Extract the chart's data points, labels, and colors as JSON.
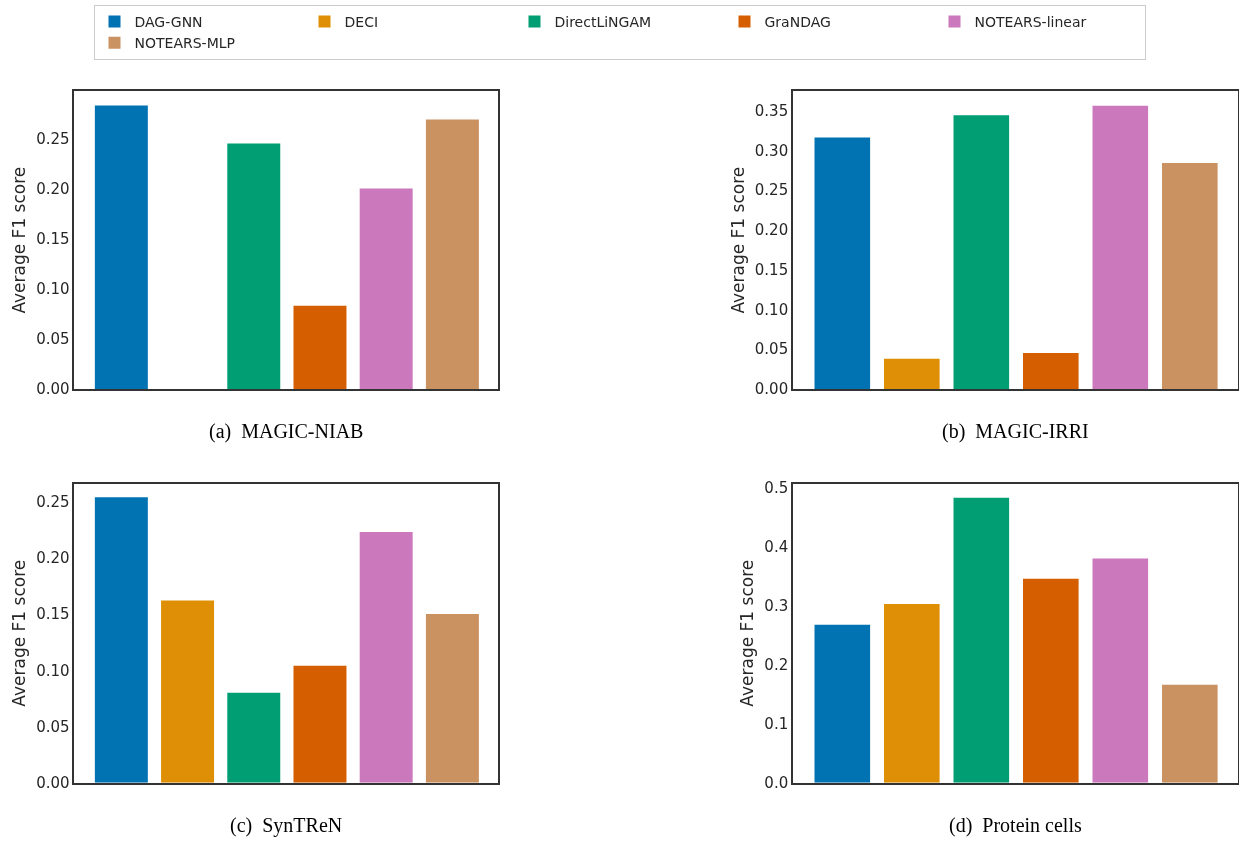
{
  "chart_data": [
    {
      "type": "bar",
      "title": "(a)  MAGIC-NIAB",
      "ylabel": "Average F1 score",
      "categories": [
        null,
        null,
        null,
        null,
        null,
        null
      ],
      "legend": "top",
      "ylim": [
        0,
        0.297
      ],
      "yticks": [
        {
          "value": 0,
          "label": "0.00"
        },
        0.05,
        {
          "value": 0.1,
          "label": "0.10"
        },
        0.15,
        {
          "value": 0.2,
          "label": "0.20"
        },
        0.25
      ],
      "series": [
        {
          "name": "DAG-GNN",
          "color": "#0173b2",
          "values": [
            0.283,
            null,
            null,
            null,
            null,
            null
          ]
        },
        {
          "name": "DECI",
          "color": "#de8f05",
          "values": [
            null,
            null,
            null,
            null,
            null,
            null
          ]
        },
        {
          "name": "DirectLiNGAM",
          "color": "#029e73",
          "values": [
            null,
            null,
            0.245,
            null,
            null,
            null
          ]
        },
        {
          "name": "GraNDAG",
          "color": "#d55e00",
          "values": [
            null,
            null,
            null,
            0.083,
            null,
            null
          ]
        },
        {
          "name": "NOTEARS-linear",
          "color": "#cc78bc",
          "values": [
            null,
            null,
            null,
            null,
            0.2,
            null
          ]
        },
        {
          "name": "NOTEARS-MLP",
          "color": "#ca9161",
          "values": [
            null,
            null,
            null,
            null,
            null,
            0.269
          ]
        }
      ]
    },
    {
      "type": "bar",
      "title": "(b)  MAGIC-IRRI",
      "ylabel": "Average F1 score",
      "categories": [
        null,
        null,
        null,
        null,
        null,
        null
      ],
      "ylim": [
        0,
        0.374
      ],
      "yticks": [
        {
          "value": 0,
          "label": "0.00"
        },
        0.05,
        {
          "value": 0.1,
          "label": "0.10"
        },
        0.15,
        {
          "value": 0.2,
          "label": "0.20"
        },
        0.25,
        {
          "value": 0.3,
          "label": "0.30"
        },
        0.35
      ],
      "series": [
        {
          "color": "#0173b2",
          "values": [
            0.316,
            null,
            null,
            null,
            null,
            null
          ]
        },
        {
          "color": "#de8f05",
          "values": [
            null,
            0.038,
            null,
            null,
            null,
            null
          ]
        },
        {
          "color": "#029e73",
          "values": [
            null,
            null,
            0.344,
            null,
            null,
            null
          ]
        },
        {
          "color": "#d55e00",
          "values": [
            null,
            null,
            null,
            0.045,
            null,
            null
          ]
        },
        {
          "color": "#cc78bc",
          "values": [
            null,
            null,
            null,
            null,
            0.356,
            null
          ]
        },
        {
          "color": "#ca9161",
          "values": [
            null,
            null,
            null,
            null,
            null,
            0.284
          ]
        }
      ]
    },
    {
      "type": "bar",
      "title": "(c)  SynTReN",
      "ylabel": "Average F1 score",
      "categories": [
        null,
        null,
        null,
        null,
        null,
        null
      ],
      "ylim": [
        0,
        0.266
      ],
      "yticks": [
        {
          "value": 0,
          "label": "0.00"
        },
        0.05,
        {
          "value": 0.1,
          "label": "0.10"
        },
        0.15,
        {
          "value": 0.2,
          "label": "0.20"
        },
        0.25
      ],
      "series": [
        {
          "color": "#0173b2",
          "values": [
            0.254,
            null,
            null,
            null,
            null,
            null
          ]
        },
        {
          "color": "#de8f05",
          "values": [
            null,
            0.162,
            null,
            null,
            null,
            null
          ]
        },
        {
          "color": "#029e73",
          "values": [
            null,
            null,
            0.08,
            null,
            null,
            null
          ]
        },
        {
          "color": "#d55e00",
          "values": [
            null,
            null,
            null,
            0.104,
            null,
            null
          ]
        },
        {
          "color": "#cc78bc",
          "values": [
            null,
            null,
            null,
            null,
            0.223,
            null
          ]
        },
        {
          "color": "#ca9161",
          "values": [
            null,
            null,
            null,
            null,
            null,
            0.15
          ]
        }
      ]
    },
    {
      "type": "bar",
      "title": "(d)  Protein cells",
      "ylabel": "Average F1 score",
      "categories": [
        null,
        null,
        null,
        null,
        null,
        null
      ],
      "ylim": [
        0,
        0.507
      ],
      "yticks": [
        {
          "value": 0,
          "label": "0.0"
        },
        0.1,
        0.2,
        0.3,
        0.4,
        0.5
      ],
      "series": [
        {
          "color": "#0173b2",
          "values": [
            0.268,
            null,
            null,
            null,
            null,
            null
          ]
        },
        {
          "color": "#de8f05",
          "values": [
            null,
            0.303,
            null,
            null,
            null,
            null
          ]
        },
        {
          "color": "#029e73",
          "values": [
            null,
            null,
            0.483,
            null,
            null,
            null
          ]
        },
        {
          "color": "#d55e00",
          "values": [
            null,
            null,
            null,
            0.346,
            null,
            null
          ]
        },
        {
          "color": "#cc78bc",
          "values": [
            null,
            null,
            null,
            null,
            0.38,
            null
          ]
        },
        {
          "color": "#ca9161",
          "values": [
            null,
            null,
            null,
            null,
            null,
            0.166
          ]
        }
      ]
    }
  ]
}
